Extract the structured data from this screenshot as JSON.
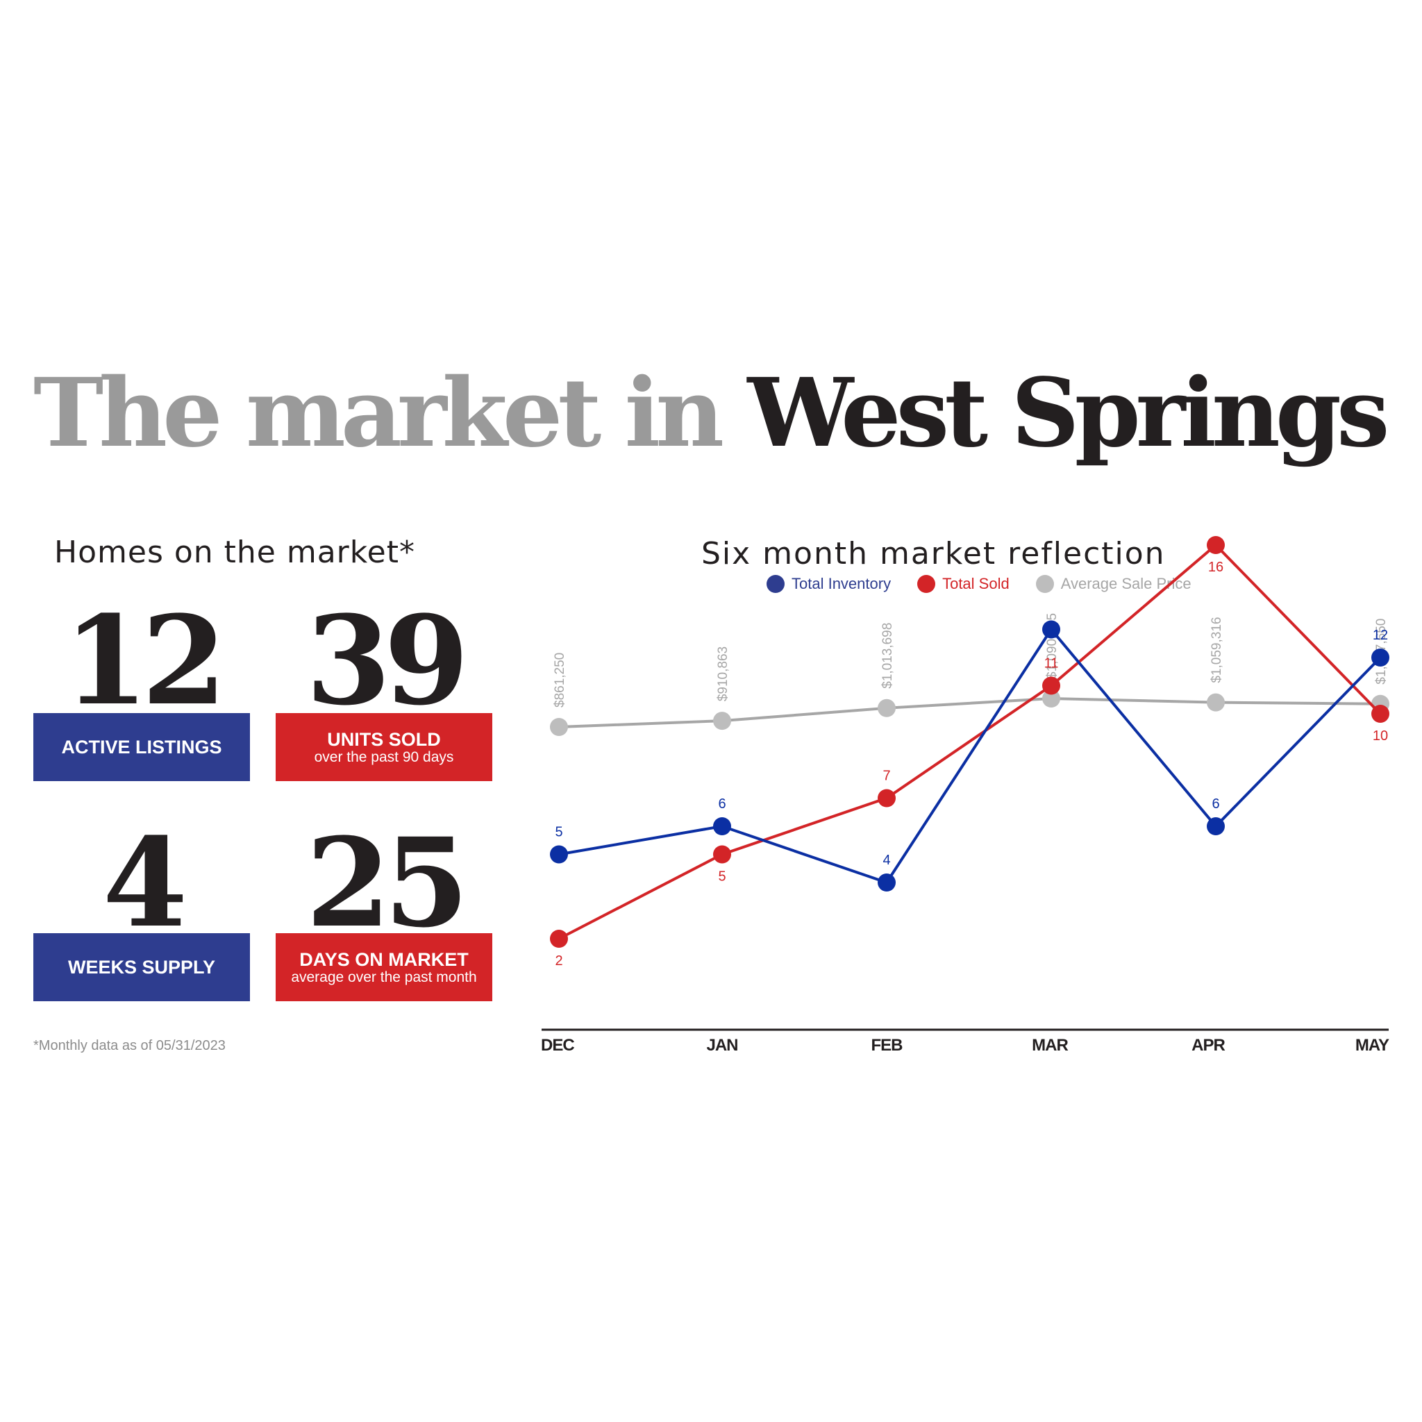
{
  "title": {
    "prefix": "The market in",
    "location": "West Springs"
  },
  "homes_section": {
    "heading": "Homes on the market*",
    "stats": [
      {
        "value": "12",
        "label": "ACTIVE LISTINGS",
        "sub": ""
      },
      {
        "value": "39",
        "label": "UNITS SOLD",
        "sub": "over the past 90 days"
      },
      {
        "value": "4",
        "label": "WEEKS SUPPLY",
        "sub": ""
      },
      {
        "value": "25",
        "label": "DAYS ON MARKET",
        "sub": "average over the past month"
      }
    ],
    "footnote": "*Monthly data as of 05/31/2023"
  },
  "colors": {
    "blue": "#0b2fa3",
    "box_blue": "#2e3d8f",
    "red": "#d32427",
    "gray": "#a6a6a6",
    "dark": "#231f20"
  },
  "chart_data": {
    "type": "line",
    "title": "Six month market reflection",
    "categories": [
      "DEC",
      "JAN",
      "FEB",
      "MAR",
      "APR",
      "MAY"
    ],
    "legend": "top",
    "grid": false,
    "series": [
      {
        "name": "Total Inventory",
        "color": "#0b2fa3",
        "values": [
          5,
          6,
          4,
          13,
          6,
          12
        ],
        "labels": [
          "5",
          "6",
          "4",
          "13",
          "6",
          "12"
        ]
      },
      {
        "name": "Total Sold",
        "color": "#d32427",
        "values": [
          2,
          5,
          7,
          11,
          16,
          10
        ],
        "labels": [
          "2",
          "5",
          "7",
          "11",
          "16",
          "10"
        ]
      },
      {
        "name": "Average Sale Price",
        "color": "#a6a6a6",
        "values": [
          861250,
          910863,
          1013698,
          1090985,
          1059316,
          1047650
        ],
        "labels": [
          "$861,250",
          "$910,863",
          "$1,013,698",
          "$1,090,985",
          "$1,059,316",
          "$1,047,650"
        ]
      }
    ]
  }
}
